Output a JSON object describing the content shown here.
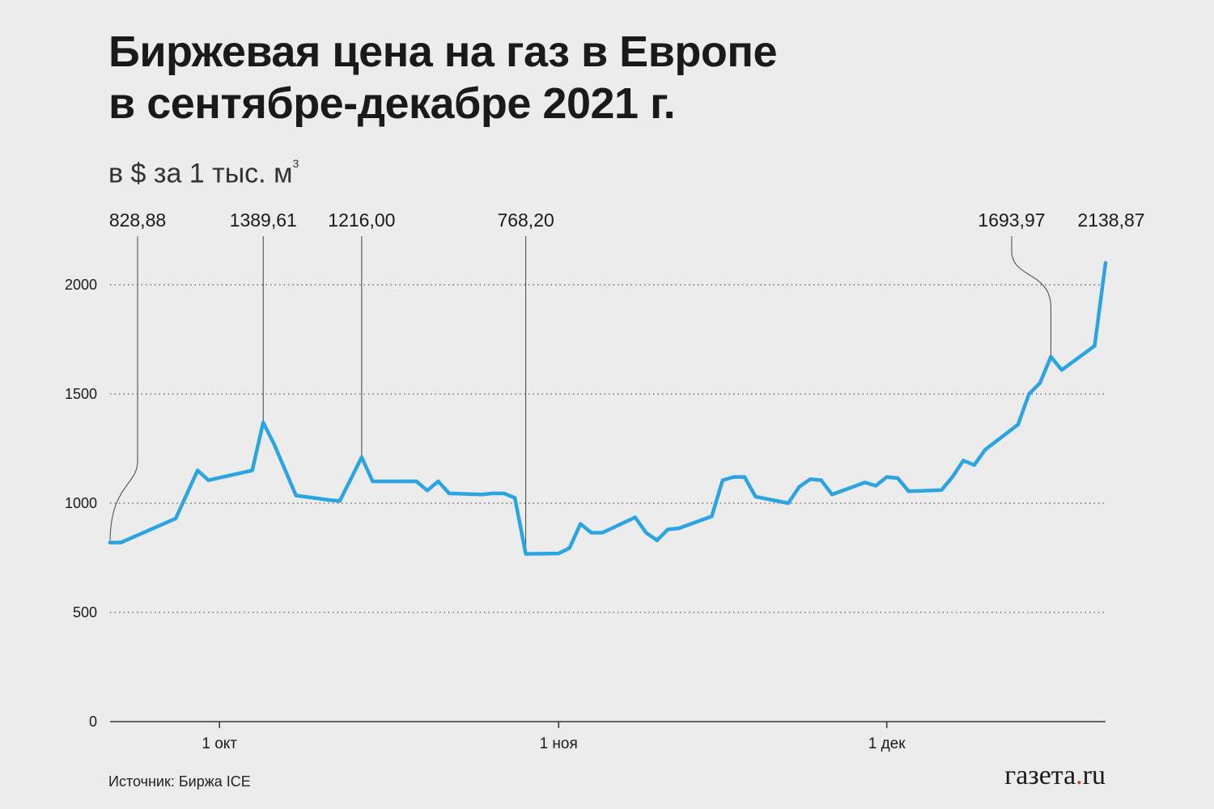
{
  "title_line1": "Биржевая цена на газ в Европе",
  "title_line2": "в сентябре-декабре 2021 г.",
  "subtitle": "в $ за 1 тыс. м",
  "subtitle_sup": "3",
  "source": "Источник: Биржа ICE",
  "logo_main": "газета",
  "logo_dot": ".",
  "logo_tld": "ru",
  "colors": {
    "line": "#2aa4e3",
    "text": "#1a1a1a",
    "grid": "#555555"
  },
  "chart_data": {
    "type": "line",
    "x_type": "date",
    "xlim": [
      "2021-09-21",
      "2021-12-21"
    ],
    "ylim": [
      0,
      2000
    ],
    "yticks": [
      {
        "value": 0,
        "label": "0"
      },
      {
        "value": 500,
        "label": "500"
      },
      {
        "value": 1000,
        "label": "1000"
      },
      {
        "value": 1500,
        "label": "1500"
      },
      {
        "value": 2000,
        "label": "2000"
      }
    ],
    "xticks": [
      {
        "date": "2021-10-01",
        "label": "1 окт"
      },
      {
        "date": "2021-11-01",
        "label": "1 ноя"
      },
      {
        "date": "2021-12-01",
        "label": "1 дек"
      }
    ],
    "grid": "horizontal dotted",
    "points": [
      [
        "2021-09-21",
        820
      ],
      [
        "2021-09-22",
        820
      ],
      [
        "2021-09-27",
        930
      ],
      [
        "2021-09-29",
        1150
      ],
      [
        "2021-09-30",
        1105
      ],
      [
        "2021-10-04",
        1150
      ],
      [
        "2021-10-05",
        1370
      ],
      [
        "2021-10-06",
        1270
      ],
      [
        "2021-10-08",
        1035
      ],
      [
        "2021-10-11",
        1015
      ],
      [
        "2021-10-12",
        1010
      ],
      [
        "2021-10-14",
        1210
      ],
      [
        "2021-10-15",
        1100
      ],
      [
        "2021-10-18",
        1100
      ],
      [
        "2021-10-19",
        1100
      ],
      [
        "2021-10-20",
        1058
      ],
      [
        "2021-10-21",
        1100
      ],
      [
        "2021-10-22",
        1045
      ],
      [
        "2021-10-25",
        1040
      ],
      [
        "2021-10-26",
        1045
      ],
      [
        "2021-10-27",
        1045
      ],
      [
        "2021-10-28",
        1025
      ],
      [
        "2021-10-29",
        768
      ],
      [
        "2021-11-01",
        770
      ],
      [
        "2021-11-02",
        795
      ],
      [
        "2021-11-03",
        905
      ],
      [
        "2021-11-04",
        865
      ],
      [
        "2021-11-05",
        865
      ],
      [
        "2021-11-08",
        935
      ],
      [
        "2021-11-09",
        865
      ],
      [
        "2021-11-10",
        830
      ],
      [
        "2021-11-11",
        880
      ],
      [
        "2021-11-12",
        885
      ],
      [
        "2021-11-15",
        940
      ],
      [
        "2021-11-16",
        1105
      ],
      [
        "2021-11-17",
        1120
      ],
      [
        "2021-11-18",
        1120
      ],
      [
        "2021-11-19",
        1030
      ],
      [
        "2021-11-22",
        1000
      ],
      [
        "2021-11-23",
        1075
      ],
      [
        "2021-11-24",
        1110
      ],
      [
        "2021-11-25",
        1105
      ],
      [
        "2021-11-26",
        1040
      ],
      [
        "2021-11-29",
        1095
      ],
      [
        "2021-11-30",
        1080
      ],
      [
        "2021-12-01",
        1120
      ],
      [
        "2021-12-02",
        1115
      ],
      [
        "2021-12-03",
        1055
      ],
      [
        "2021-12-06",
        1060
      ],
      [
        "2021-12-07",
        1120
      ],
      [
        "2021-12-08",
        1195
      ],
      [
        "2021-12-09",
        1175
      ],
      [
        "2021-12-10",
        1245
      ],
      [
        "2021-12-13",
        1360
      ],
      [
        "2021-12-14",
        1500
      ],
      [
        "2021-12-15",
        1550
      ],
      [
        "2021-12-16",
        1670
      ],
      [
        "2021-12-17",
        1610
      ],
      [
        "2021-12-20",
        1720
      ],
      [
        "2021-12-21",
        2100
      ]
    ],
    "annotations": [
      {
        "date": "2021-09-21",
        "value": 820,
        "label": "828,88"
      },
      {
        "date": "2021-10-05",
        "value": 1370,
        "label": "1389,61"
      },
      {
        "date": "2021-10-14",
        "value": 1210,
        "label": "1216,00"
      },
      {
        "date": "2021-10-29",
        "value": 768,
        "label": "768,20"
      },
      {
        "date": "2021-12-16",
        "value": 1670,
        "label": "1693,97"
      },
      {
        "date": "2021-12-21",
        "value": 2100,
        "label": "2138,87"
      }
    ]
  }
}
